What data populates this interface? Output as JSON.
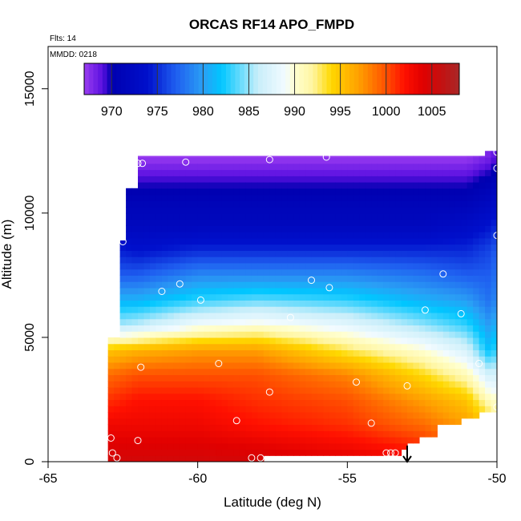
{
  "chart_data": {
    "type": "heatmap",
    "title": "ORCAS RF14 APO_FMPD",
    "xlabel": "Latitude (deg N)",
    "ylabel": "Altitude (m)",
    "xlim": [
      -65,
      -50
    ],
    "ylim": [
      0,
      16700
    ],
    "x_ticks": [
      -65,
      -60,
      -55,
      -50
    ],
    "x_tick_labels": [
      "-65",
      "-60",
      "-55",
      "-50"
    ],
    "y_ticks": [
      0,
      5000,
      10000,
      15000
    ],
    "y_tick_labels": [
      "0",
      "5000",
      "10000",
      "15000"
    ],
    "annotations": {
      "flights": "Flts: 14",
      "mmdd": "MMDD: 0218"
    },
    "colorbar": {
      "range": [
        967,
        1008
      ],
      "ticks": [
        970,
        975,
        980,
        985,
        990,
        995,
        1000,
        1005
      ],
      "tick_labels": [
        "970",
        "975",
        "980",
        "985",
        "990",
        "995",
        "1000",
        "1005"
      ],
      "stops": [
        [
          967,
          "#9a3cf0"
        ],
        [
          969,
          "#5a10e0"
        ],
        [
          970,
          "#0000b0"
        ],
        [
          974,
          "#0010cc"
        ],
        [
          977,
          "#1f5ef0"
        ],
        [
          980,
          "#2a9ff5"
        ],
        [
          982,
          "#00c6ff"
        ],
        [
          986,
          "#c8eefa"
        ],
        [
          989,
          "#f2fbff"
        ],
        [
          990,
          "#ffffd0"
        ],
        [
          992,
          "#fff5a0"
        ],
        [
          994,
          "#ffd800"
        ],
        [
          997,
          "#ffa000"
        ],
        [
          1000,
          "#ff5000"
        ],
        [
          1002,
          "#ff1000"
        ],
        [
          1004,
          "#e00000"
        ],
        [
          1006,
          "#c41010"
        ],
        [
          1008,
          "#a82828"
        ]
      ]
    },
    "field_bottom_value": 1006,
    "field_top_value": 967,
    "profile_latitudes": [
      -63,
      -62,
      -60,
      -58,
      -55,
      -52.5,
      -51,
      -50.3,
      -50
    ],
    "profile_altitudes": [
      0,
      1500,
      2500,
      3500,
      4500,
      5500,
      6500,
      7500,
      8500,
      9500,
      10500,
      11500,
      12300
    ],
    "profiles": [
      [
        1005,
        1003,
        1001,
        999,
        995,
        985,
        981,
        977,
        975,
        972,
        971,
        969,
        967
      ],
      [
        1005,
        1003,
        1002,
        1000,
        996,
        986,
        981,
        977,
        974,
        972,
        971,
        969,
        967
      ],
      [
        1005,
        1003,
        1002,
        1000,
        997,
        989,
        983,
        979,
        975,
        972,
        971,
        969,
        967
      ],
      [
        1005,
        1002,
        1001,
        1000,
        997,
        990,
        984,
        979,
        975,
        972,
        971,
        969,
        967
      ],
      [
        1004,
        1001,
        1000,
        998,
        993,
        988,
        983,
        979,
        975,
        972,
        971,
        969,
        967
      ],
      [
        1003,
        999,
        997,
        994,
        990,
        985,
        981,
        978,
        975,
        972,
        971,
        969,
        967
      ],
      [
        1000,
        997,
        995,
        991,
        987,
        983,
        980,
        977,
        975,
        973,
        971,
        969,
        967
      ],
      [
        998,
        995,
        991,
        987,
        982,
        980,
        978,
        977,
        976,
        974,
        972,
        970,
        968
      ],
      [
        997,
        993,
        990,
        987,
        983,
        981,
        979,
        978,
        977,
        975,
        973,
        971,
        969
      ]
    ],
    "coverage": [
      {
        "lat": [
          -63,
          -62.6
        ],
        "alt": [
          0,
          5000
        ]
      },
      {
        "lat": [
          -62.6,
          -62.5
        ],
        "alt": [
          0,
          7000
        ]
      },
      {
        "lat": [
          -62.5,
          -62.3
        ],
        "alt": [
          0,
          8900
        ]
      },
      {
        "lat": [
          -62.3,
          -61.9
        ],
        "alt": [
          0,
          11000
        ]
      },
      {
        "lat": [
          -61.9,
          -57.7
        ],
        "alt": [
          0,
          12300
        ]
      },
      {
        "lat": [
          -57.7,
          -53.2
        ],
        "alt": [
          250,
          12300
        ]
      },
      {
        "lat": [
          -53.2,
          -52.9
        ],
        "alt": [
          500,
          12300
        ]
      },
      {
        "lat": [
          -52.9,
          -52.6
        ],
        "alt": [
          750,
          12300
        ]
      },
      {
        "lat": [
          -52.6,
          -51.9
        ],
        "alt": [
          1000,
          12300
        ]
      },
      {
        "lat": [
          -51.9,
          -51.2
        ],
        "alt": [
          1500,
          12300
        ]
      },
      {
        "lat": [
          -51.2,
          -50.6
        ],
        "alt": [
          1750,
          12300
        ]
      },
      {
        "lat": [
          -50.6,
          -50.3
        ],
        "alt": [
          1800,
          12300
        ]
      },
      {
        "lat": [
          -50.3,
          -50
        ],
        "alt": [
          2000,
          12500
        ]
      }
    ],
    "sample_points": [
      {
        "lat": -62.7,
        "alt": 150
      },
      {
        "lat": -62.85,
        "alt": 350
      },
      {
        "lat": -62.9,
        "alt": 950
      },
      {
        "lat": -62.0,
        "alt": 850
      },
      {
        "lat": -61.9,
        "alt": 3800
      },
      {
        "lat": -62.5,
        "alt": 8850
      },
      {
        "lat": -62.0,
        "alt": 12000
      },
      {
        "lat": -61.85,
        "alt": 12000
      },
      {
        "lat": -61.2,
        "alt": 6850
      },
      {
        "lat": -60.6,
        "alt": 7150
      },
      {
        "lat": -60.4,
        "alt": 12050
      },
      {
        "lat": -59.9,
        "alt": 6500
      },
      {
        "lat": -59.3,
        "alt": 3950
      },
      {
        "lat": -58.7,
        "alt": 1650
      },
      {
        "lat": -58.2,
        "alt": 150
      },
      {
        "lat": -57.9,
        "alt": 150
      },
      {
        "lat": -57.6,
        "alt": 2800
      },
      {
        "lat": -57.6,
        "alt": 12150
      },
      {
        "lat": -56.9,
        "alt": 5800
      },
      {
        "lat": -56.2,
        "alt": 7300
      },
      {
        "lat": -55.6,
        "alt": 7000
      },
      {
        "lat": -55.7,
        "alt": 12250
      },
      {
        "lat": -54.7,
        "alt": 3200
      },
      {
        "lat": -54.2,
        "alt": 1550
      },
      {
        "lat": -53.7,
        "alt": 350
      },
      {
        "lat": -53.55,
        "alt": 350
      },
      {
        "lat": -53.4,
        "alt": 350
      },
      {
        "lat": -53.0,
        "alt": 3050
      },
      {
        "lat": -52.4,
        "alt": 6100
      },
      {
        "lat": -51.8,
        "alt": 7550
      },
      {
        "lat": -51.2,
        "alt": 5950
      },
      {
        "lat": -50.6,
        "alt": 3950
      },
      {
        "lat": -50.0,
        "alt": 2200
      },
      {
        "lat": -50.0,
        "alt": 9100
      },
      {
        "lat": -50.0,
        "alt": 11800
      },
      {
        "lat": -50.0,
        "alt": 12450
      }
    ],
    "arrow": {
      "lat": -53.0,
      "alt_from": 650,
      "alt_to": 0
    },
    "colors": {
      "axis": "#000000",
      "point_stroke": "#ffffff",
      "background": "#ffffff"
    }
  }
}
